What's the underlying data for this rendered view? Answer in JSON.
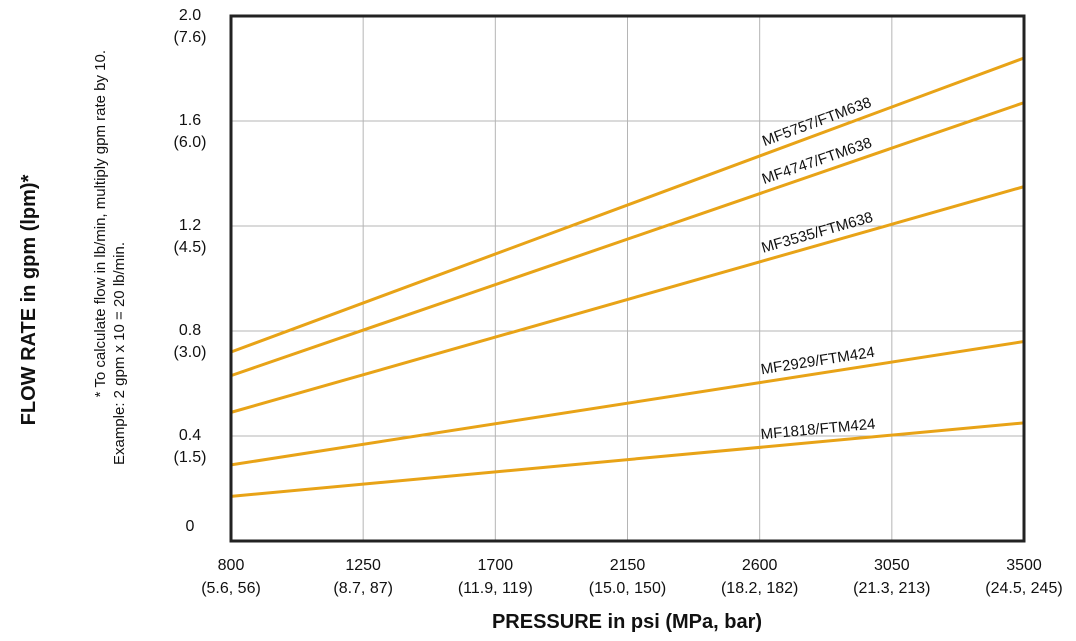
{
  "chart_data": {
    "type": "line",
    "xlabel": "PRESSURE in psi (MPa, bar)",
    "ylabel": "FLOW RATE in gpm (lpm)*",
    "note_line1": "* To calculate flow in lb/min, multiply gpm rate by 10.",
    "note_line2": "Example: 2 gpm x 10 = 20 lb/min.",
    "xlim": [
      800,
      3500
    ],
    "ylim": [
      0,
      2.0
    ],
    "grid": true,
    "x_ticks": [
      {
        "value": 800,
        "label": "800",
        "sublabel": "(5.6, 56)"
      },
      {
        "value": 1250,
        "label": "1250",
        "sublabel": "(8.7, 87)"
      },
      {
        "value": 1700,
        "label": "1700",
        "sublabel": "(11.9, 119)"
      },
      {
        "value": 2150,
        "label": "2150",
        "sublabel": "(15.0, 150)"
      },
      {
        "value": 2600,
        "label": "2600",
        "sublabel": "(18.2, 182)"
      },
      {
        "value": 3050,
        "label": "3050",
        "sublabel": "(21.3, 213)"
      },
      {
        "value": 3500,
        "label": "3500",
        "sublabel": "(24.5, 245)"
      }
    ],
    "y_ticks": [
      {
        "value": 0,
        "label": "0",
        "sublabel": ""
      },
      {
        "value": 0.4,
        "label": "0.4",
        "sublabel": "(1.5)"
      },
      {
        "value": 0.8,
        "label": "0.8",
        "sublabel": "(3.0)"
      },
      {
        "value": 1.2,
        "label": "1.2",
        "sublabel": "(4.5)"
      },
      {
        "value": 1.6,
        "label": "1.6",
        "sublabel": "(6.0)"
      },
      {
        "value": 2.0,
        "label": "2.0",
        "sublabel": "(7.6)"
      }
    ],
    "series_color": "#e8a317",
    "series": [
      {
        "name": "MF5757/FTM638",
        "x": [
          800,
          3500
        ],
        "y": [
          0.72,
          1.84
        ],
        "label_x": 2800
      },
      {
        "name": "MF4747/FTM638",
        "x": [
          800,
          3500
        ],
        "y": [
          0.63,
          1.67
        ],
        "label_x": 2800
      },
      {
        "name": "MF3535/FTM638",
        "x": [
          800,
          3500
        ],
        "y": [
          0.49,
          1.35
        ],
        "label_x": 2800
      },
      {
        "name": "MF2929/FTM424",
        "x": [
          800,
          3500
        ],
        "y": [
          0.29,
          0.76
        ],
        "label_x": 2800
      },
      {
        "name": "MF1818/FTM424",
        "x": [
          800,
          3500
        ],
        "y": [
          0.17,
          0.45
        ],
        "label_x": 2800
      }
    ]
  }
}
